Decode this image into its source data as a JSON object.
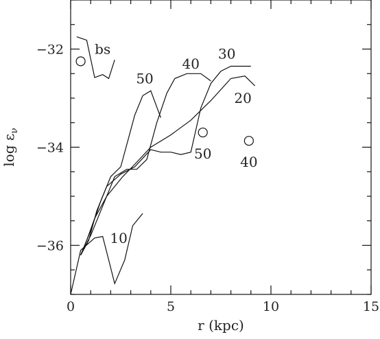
{
  "chart_data": {
    "type": "line",
    "title": "",
    "xlabel": "r (kpc)",
    "ylabel_main": "log ε",
    "ylabel_sub": "ν",
    "xlim": [
      0,
      15
    ],
    "ylim": [
      -37,
      -31
    ],
    "x_ticks": [
      0,
      5,
      10,
      15
    ],
    "x_tick_labels": [
      "0",
      "5",
      "10",
      "15"
    ],
    "y_ticks": [
      -32,
      -34,
      -36
    ],
    "y_tick_labels": [
      "−32",
      "−34",
      "−36"
    ],
    "x_minor_step": 1,
    "y_minor_step": 0.5,
    "grid": false,
    "series": [
      {
        "name": "bs",
        "x": [
          0.3,
          0.8,
          1.2,
          1.6,
          1.9,
          2.2
        ],
        "y": [
          -31.75,
          -31.82,
          -32.58,
          -32.52,
          -32.6,
          -32.22
        ],
        "label_at": [
          1.6,
          -32.0
        ]
      },
      {
        "name": "10",
        "x": [
          0.0,
          0.5,
          1.2,
          1.6,
          1.9,
          2.2,
          2.7,
          3.1,
          3.6
        ],
        "y": [
          -37.0,
          -36.1,
          -35.85,
          -35.82,
          -36.3,
          -36.78,
          -36.3,
          -35.6,
          -35.35
        ],
        "label_at": [
          2.4,
          -35.85
        ]
      },
      {
        "name": "20",
        "x": [
          0.5,
          0.8,
          1.2,
          1.8,
          2.6,
          3.2,
          4.0,
          5.0,
          6.0,
          7.0,
          8.0,
          8.7,
          9.2
        ],
        "y": [
          -36.2,
          -35.9,
          -35.45,
          -35.0,
          -34.6,
          -34.35,
          -34.0,
          -33.75,
          -33.45,
          -33.05,
          -32.6,
          -32.55,
          -32.75
        ],
        "label_at": [
          8.6,
          -33.0
        ]
      },
      {
        "name": "30",
        "x": [
          0.5,
          0.9,
          1.3,
          1.8,
          2.5,
          3.2,
          4.0,
          4.5,
          5.0,
          5.5,
          6.0,
          6.5,
          7.0,
          7.5,
          8.0,
          8.5,
          9.0
        ],
        "y": [
          -36.2,
          -35.9,
          -35.3,
          -34.8,
          -34.55,
          -34.4,
          -34.05,
          -34.1,
          -34.1,
          -34.15,
          -34.1,
          -33.2,
          -32.7,
          -32.45,
          -32.35,
          -32.35,
          -32.35
        ],
        "label_at": [
          7.8,
          -32.1
        ]
      },
      {
        "name": "40",
        "x": [
          0.5,
          1.0,
          1.6,
          2.2,
          2.8,
          3.3,
          3.8,
          4.3,
          4.8,
          5.2,
          5.8,
          6.5,
          7.0
        ],
        "y": [
          -36.2,
          -35.8,
          -35.2,
          -34.6,
          -34.45,
          -34.45,
          -34.25,
          -33.5,
          -32.9,
          -32.6,
          -32.5,
          -32.5,
          -32.65
        ],
        "label_at": [
          6.0,
          -32.3
        ]
      },
      {
        "name": "50",
        "x": [
          0.5,
          1.0,
          1.5,
          2.0,
          2.5,
          2.9,
          3.2,
          3.6,
          4.0,
          4.5
        ],
        "y": [
          -36.2,
          -35.7,
          -35.1,
          -34.6,
          -34.4,
          -33.8,
          -33.35,
          -32.95,
          -32.85,
          -33.4
        ],
        "label_at": [
          3.7,
          -32.6
        ]
      }
    ],
    "markers": [
      {
        "label": "",
        "x": 0.5,
        "y": -32.25
      },
      {
        "label": "50",
        "x": 6.6,
        "y": -33.7,
        "label_at": [
          6.6,
          -34.13
        ]
      },
      {
        "label": "40",
        "x": 8.9,
        "y": -33.87,
        "label_at": [
          8.9,
          -34.3
        ]
      }
    ]
  }
}
